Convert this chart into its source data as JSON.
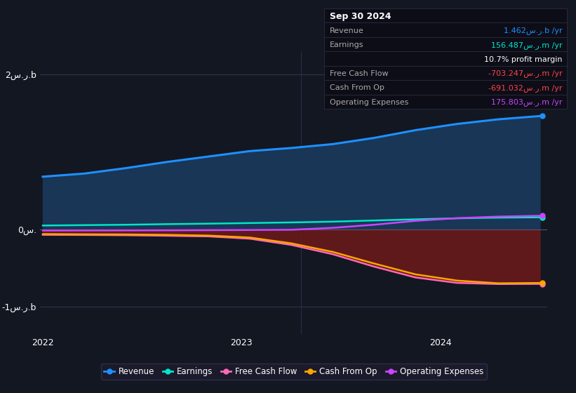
{
  "bg_color": "#131722",
  "plot_bg_color": "#131722",
  "revenue_color": "#1e90ff",
  "revenue_fill_color": "#1a3a5c",
  "earnings_color": "#00e5c8",
  "free_cash_flow_color": "#ff69b4",
  "cash_from_op_color": "#ffa500",
  "operating_expenses_color": "#cc44ff",
  "negative_fill_color": "#6b1a1a",
  "ylabel_top": "2س.ر.b",
  "ylabel_mid": "0س.",
  "ylabel_bot": "-1س.ر.b",
  "xtick_labels": [
    "2022",
    "2023",
    "2024"
  ],
  "ylim": [
    -1350000000.0,
    2300000000.0
  ],
  "revenue_data": [
    680000000.0,
    720000000.0,
    790000000.0,
    870000000.0,
    940000000.0,
    1010000000.0,
    1050000000.0,
    1100000000.0,
    1180000000.0,
    1280000000.0,
    1360000000.0,
    1420000000.0,
    1462000000.0
  ],
  "earnings_data": [
    50000000.0,
    55000000.0,
    60000000.0,
    68000000.0,
    74000000.0,
    82000000.0,
    90000000.0,
    100000000.0,
    115000000.0,
    130000000.0,
    143000000.0,
    152000000.0,
    156000000.0
  ],
  "free_cash_flow_data": [
    -70000000.0,
    -72000000.0,
    -75000000.0,
    -82000000.0,
    -90000000.0,
    -120000000.0,
    -200000000.0,
    -320000000.0,
    -480000000.0,
    -620000000.0,
    -690000000.0,
    -705000000.0,
    -703000000.0
  ],
  "cash_from_op_data": [
    -60000000.0,
    -63000000.0,
    -65000000.0,
    -70000000.0,
    -80000000.0,
    -105000000.0,
    -180000000.0,
    -290000000.0,
    -440000000.0,
    -580000000.0,
    -660000000.0,
    -695000000.0,
    -691000000.0
  ],
  "operating_expenses_data": [
    -15000000.0,
    -14000000.0,
    -13000000.0,
    -12000000.0,
    -10000000.0,
    -8000000.0,
    -5000000.0,
    20000000.0,
    60000000.0,
    110000000.0,
    145000000.0,
    165000000.0,
    175800000.0
  ],
  "legend_items": [
    {
      "label": "Revenue",
      "color": "#1e90ff"
    },
    {
      "label": "Earnings",
      "color": "#00e5c8"
    },
    {
      "label": "Free Cash Flow",
      "color": "#ff69b4"
    },
    {
      "label": "Cash From Op",
      "color": "#ffa500"
    },
    {
      "label": "Operating Expenses",
      "color": "#cc44ff"
    }
  ],
  "table_rows": [
    {
      "label": "Sep 30 2024",
      "value": "",
      "label_color": "#ffffff",
      "value_color": "#ffffff",
      "is_header": true
    },
    {
      "label": "Revenue",
      "value": "1.462س.ر.b /yr",
      "label_color": "#aaaaaa",
      "value_color": "#1e90ff",
      "is_header": false
    },
    {
      "label": "Earnings",
      "value": "156.487س.ر.m /yr",
      "label_color": "#aaaaaa",
      "value_color": "#00e5c8",
      "is_header": false
    },
    {
      "label": "",
      "value": "10.7% profit margin",
      "label_color": "#aaaaaa",
      "value_color": "#ffffff",
      "is_header": false
    },
    {
      "label": "Free Cash Flow",
      "value": "-703.247س.ر.m /yr",
      "label_color": "#aaaaaa",
      "value_color": "#ff4444",
      "is_header": false
    },
    {
      "label": "Cash From Op",
      "value": "-691.032س.ر.m /yr",
      "label_color": "#aaaaaa",
      "value_color": "#ff4444",
      "is_header": false
    },
    {
      "label": "Operating Expenses",
      "value": "175.803س.ر.m /yr",
      "label_color": "#aaaaaa",
      "value_color": "#cc44ff",
      "is_header": false
    }
  ]
}
